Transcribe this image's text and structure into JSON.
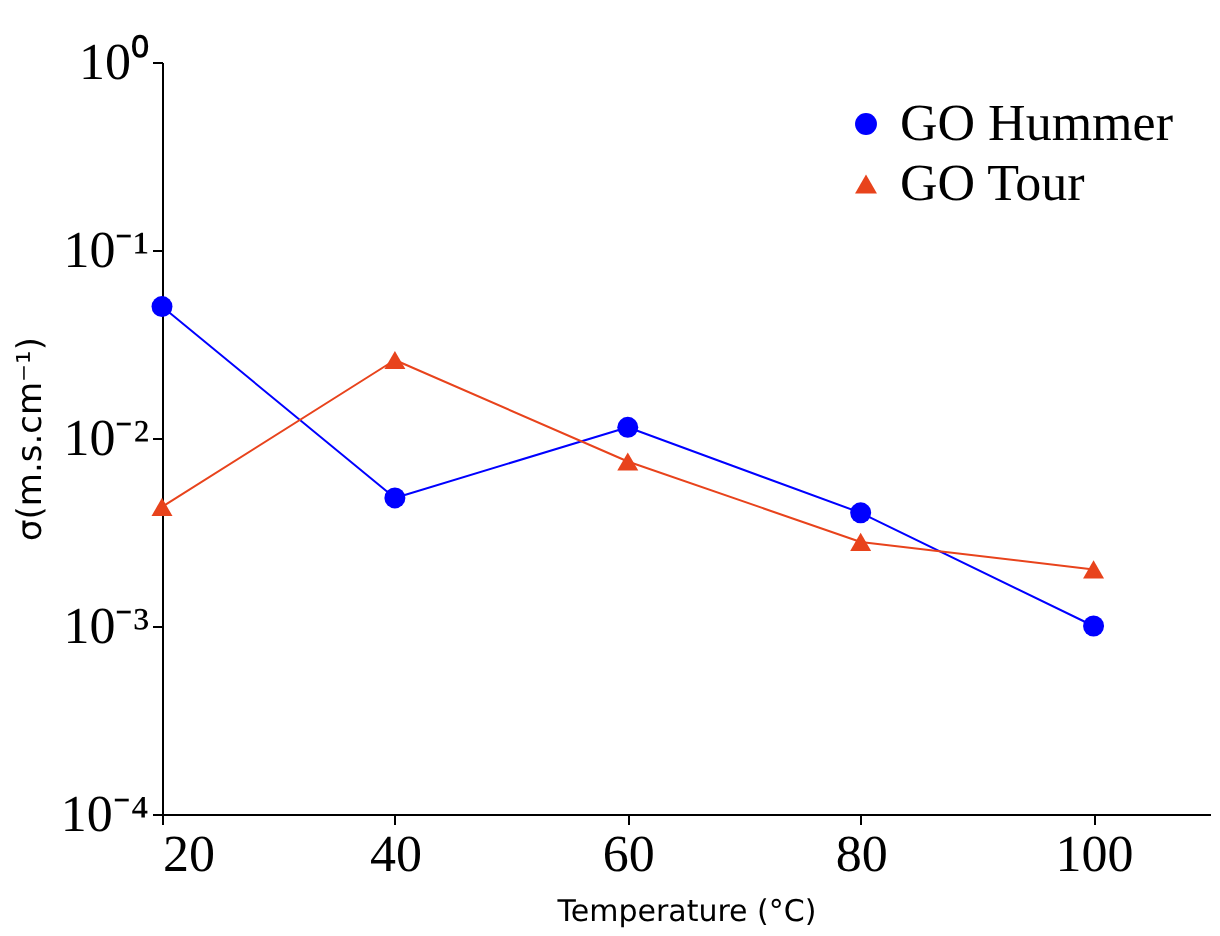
{
  "chart_data": {
    "type": "line",
    "xlabel": "Temperature  (°C)",
    "ylabel": "σ(m.s.cm⁻¹)",
    "x": [
      20,
      40,
      60,
      80,
      100
    ],
    "series": [
      {
        "name": "GO Hummer",
        "color": "#0000ff",
        "marker": "circle",
        "values": [
          0.05,
          0.0048,
          0.0114,
          0.004,
          0.001
        ]
      },
      {
        "name": "GO Tour",
        "color": "#e8431c",
        "marker": "triangle",
        "values": [
          0.0043,
          0.026,
          0.0075,
          0.0028,
          0.002
        ]
      }
    ],
    "log": "y",
    "xlim": [
      20,
      110
    ],
    "xticks": [
      20,
      40,
      60,
      80,
      100
    ],
    "ylim": [
      0.0001,
      1
    ],
    "yticks": [
      {
        "value": 0.0001,
        "label": "10⁻⁴"
      },
      {
        "value": 0.001,
        "label": "10⁻³"
      },
      {
        "value": 0.01,
        "label": "10⁻²"
      },
      {
        "value": 0.1,
        "label": "10⁻¹"
      },
      {
        "value": 1,
        "label": "10⁰"
      }
    ],
    "grid": false,
    "legend": "top right",
    "line_style": "solid"
  }
}
